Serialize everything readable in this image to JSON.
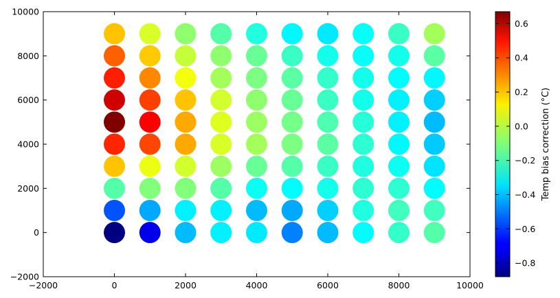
{
  "chart_data": {
    "type": "scatter",
    "title": "",
    "xlabel": "",
    "ylabel": "",
    "xlim": [
      -2000,
      10000
    ],
    "ylim": [
      -2000,
      10000
    ],
    "xticks": [
      -2000,
      0,
      2000,
      4000,
      6000,
      8000,
      10000
    ],
    "yticks": [
      -2000,
      0,
      2000,
      4000,
      6000,
      8000,
      10000
    ],
    "xtick_labels": [
      "−2000",
      "0",
      "2000",
      "4000",
      "6000",
      "8000",
      "10000"
    ],
    "ytick_labels": [
      "−2000",
      "0",
      "2000",
      "4000",
      "6000",
      "8000",
      "10000"
    ],
    "x": [
      0,
      1000,
      2000,
      3000,
      4000,
      5000,
      6000,
      7000,
      8000,
      9000
    ],
    "y": [
      0,
      1000,
      2000,
      3000,
      4000,
      5000,
      6000,
      7000,
      8000,
      9000
    ],
    "colorbar": {
      "label": "Temp bias correction ($^\\circ$C)",
      "label_display": "Temp bias correction (°C)",
      "colormap": "jet",
      "vmin": -0.88,
      "vmax": 0.67,
      "ticks": [
        -0.8,
        -0.6,
        -0.4,
        -0.2,
        0.0,
        0.2,
        0.4,
        0.6
      ],
      "tick_labels": [
        "−0.8",
        "−0.6",
        "−0.4",
        "−0.2",
        "0.0",
        "0.2",
        "0.4",
        "0.6"
      ]
    },
    "values_note": "values[i][j]: i indexes y (0..9000), j indexes x (0..9000)",
    "values": [
      [
        -0.88,
        -0.72,
        -0.4,
        -0.32,
        -0.33,
        -0.49,
        -0.4,
        -0.3,
        -0.22,
        -0.17
      ],
      [
        -0.56,
        -0.43,
        -0.32,
        -0.32,
        -0.4,
        -0.43,
        -0.37,
        -0.25,
        -0.2,
        -0.2
      ],
      [
        -0.17,
        -0.1,
        -0.1,
        -0.17,
        -0.28,
        -0.3,
        -0.27,
        -0.23,
        -0.23,
        -0.3
      ],
      [
        0.18,
        0.06,
        0.02,
        -0.06,
        -0.14,
        -0.17,
        -0.21,
        -0.25,
        -0.28,
        -0.34
      ],
      [
        0.42,
        0.37,
        0.22,
        0.03,
        -0.05,
        -0.11,
        -0.16,
        -0.23,
        -0.31,
        -0.38
      ],
      [
        0.67,
        0.48,
        0.22,
        0.04,
        -0.06,
        -0.12,
        -0.18,
        -0.24,
        -0.32,
        -0.4
      ],
      [
        0.55,
        0.38,
        0.18,
        0.02,
        -0.08,
        -0.14,
        -0.21,
        -0.27,
        -0.32,
        -0.37
      ],
      [
        0.43,
        0.27,
        0.07,
        -0.05,
        -0.11,
        -0.16,
        -0.22,
        -0.27,
        -0.3,
        -0.31
      ],
      [
        0.33,
        0.17,
        0.0,
        -0.08,
        -0.14,
        -0.21,
        -0.27,
        -0.29,
        -0.27,
        -0.16
      ],
      [
        0.18,
        0.03,
        -0.08,
        -0.17,
        -0.25,
        -0.31,
        -0.33,
        -0.29,
        -0.21,
        -0.05
      ]
    ]
  }
}
